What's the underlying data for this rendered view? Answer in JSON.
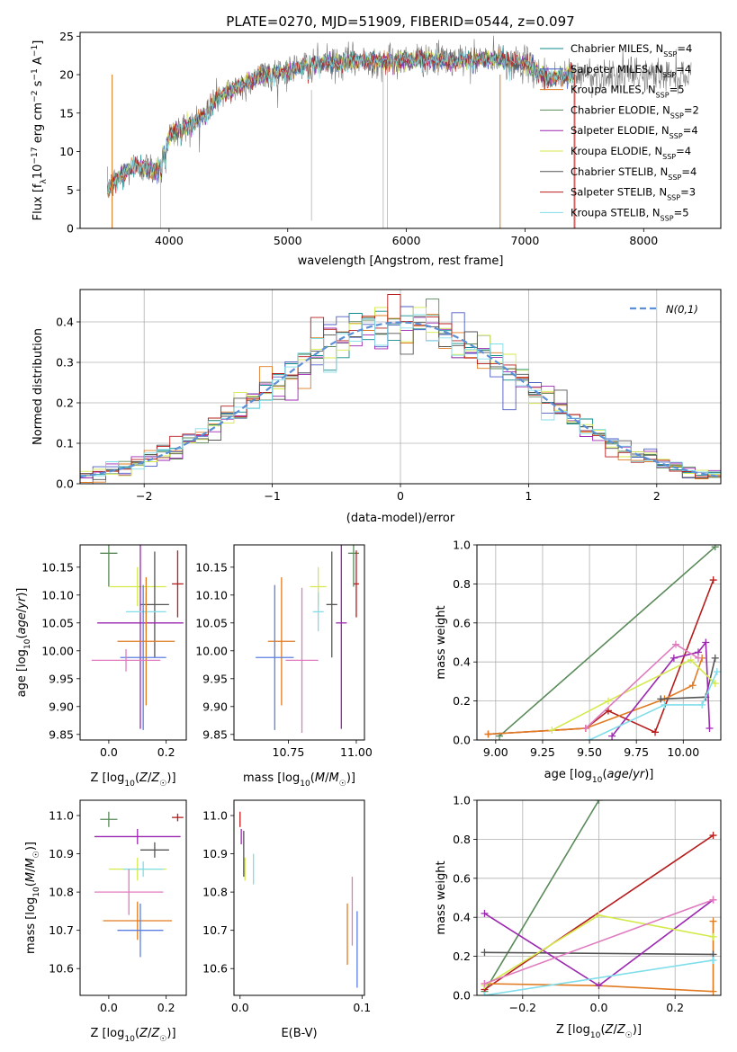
{
  "colors": {
    "chabrier_miles": "#0f8a8a",
    "salpeter_miles": "#4b5cc4",
    "kroupa_miles": "#e07b22",
    "chabrier_elodie": "#5a8a5a",
    "salpeter_elodie": "#9c27b0",
    "kroupa_elodie": "#d4e94a",
    "chabrier_stelib": "#555555",
    "salpeter_stelib": "#b71c1c",
    "kroupa_stelib": "#80deea",
    "gaussian": "#5b8fd6",
    "extra_pink": "#e07bbf",
    "extra_blue": "#5b7fe0"
  },
  "chart_data": [
    {
      "type": "line",
      "title": "PLATE=0270, MJD=51909, FIBERID=0544, z=0.097",
      "xlabel": "wavelength [Angstrom, rest frame]",
      "ylabel": "Flux [f_λ10^-17 erg cm^-2 s^-1 A^-1]",
      "xlim": [
        3250,
        8650
      ],
      "ylim": [
        0,
        25.5
      ],
      "xticks": [
        4000,
        5000,
        6000,
        7000,
        8000
      ],
      "yticks": [
        0,
        5,
        10,
        15,
        20,
        25
      ],
      "legend": "right",
      "continuum": {
        "x": [
          3480,
          3600,
          3700,
          3800,
          3900,
          4000,
          4100,
          4200,
          4300,
          4400,
          4600,
          4800,
          5000,
          5200,
          5400,
          5600,
          5800,
          6000,
          6200,
          6400,
          6600,
          6800,
          7000,
          7200,
          7400
        ],
        "y": [
          5,
          7,
          8,
          8,
          7.5,
          12,
          13,
          13.5,
          15,
          17,
          18.5,
          20,
          20.5,
          21.5,
          21.5,
          21.8,
          21.8,
          22,
          22,
          21.8,
          22,
          22,
          21.5,
          19.5,
          20
        ]
      },
      "legend_entries": [
        {
          "label": "Chabrier MILES, N",
          "sub": "SSP",
          "suffix": "=4",
          "color": "#0f8a8a"
        },
        {
          "label": "Salpeter MILES, N",
          "sub": "SSP",
          "suffix": "=4",
          "color": "#4b5cc4"
        },
        {
          "label": "Kroupa MILES, N",
          "sub": "SSP",
          "suffix": "=5",
          "color": "#e07b22"
        },
        {
          "label": "Chabrier ELODIE, N",
          "sub": "SSP",
          "suffix": "=2",
          "color": "#5a8a5a"
        },
        {
          "label": "Salpeter ELODIE, N",
          "sub": "SSP",
          "suffix": "=4",
          "color": "#9c27b0"
        },
        {
          "label": "Kroupa ELODIE, N",
          "sub": "SSP",
          "suffix": "=4",
          "color": "#d4e94a"
        },
        {
          "label": "Chabrier STELIB, N",
          "sub": "SSP",
          "suffix": "=4",
          "color": "#555555"
        },
        {
          "label": "Salpeter STELIB, N",
          "sub": "SSP",
          "suffix": "=3",
          "color": "#b71c1c"
        },
        {
          "label": "Kroupa STELIB, N",
          "sub": "SSP",
          "suffix": "=5",
          "color": "#80deea"
        }
      ]
    },
    {
      "type": "histogram",
      "xlabel": "(data-model)/error",
      "ylabel": "Normed distribution",
      "xlim": [
        -2.5,
        2.5
      ],
      "ylim": [
        0,
        0.48
      ],
      "xticks": [
        -2,
        -1,
        0,
        1,
        2
      ],
      "yticks": [
        0.0,
        0.1,
        0.2,
        0.3,
        0.4
      ],
      "grid": true,
      "legend": "top-right",
      "gaussian_label": "N(0,1)",
      "bin_width": 0.1
    },
    {
      "type": "errorbar",
      "xlabel": "Z [log10(Z/Z☉)]",
      "ylabel": "age  [log10(age/yr)]",
      "xlim": [
        -0.1,
        0.27
      ],
      "ylim": [
        9.84,
        10.19
      ],
      "xticks": [
        0.0,
        0.2
      ],
      "yticks": [
        9.85,
        9.9,
        9.95,
        10.0,
        10.05,
        10.1,
        10.15
      ],
      "points": [
        {
          "color": "#5a8a5a",
          "x": 0.0,
          "xerr": 0.03,
          "y": 10.175,
          "yerr": 0.06
        },
        {
          "color": "#d4e94a",
          "x": 0.1,
          "xerr": 0.1,
          "y": 10.115,
          "yerr": 0.035
        },
        {
          "color": "#b71c1c",
          "x": 0.24,
          "xerr": 0.02,
          "y": 10.12,
          "yerr": 0.06
        },
        {
          "color": "#555555",
          "x": 0.16,
          "xerr": 0.05,
          "y": 10.083,
          "yerr": 0.095
        },
        {
          "color": "#9c27b0",
          "x": 0.11,
          "xerr": 0.15,
          "y": 10.05,
          "yerr": 0.19
        },
        {
          "color": "#80deea",
          "x": 0.13,
          "xerr": 0.07,
          "y": 10.07,
          "yerr": 0.035
        },
        {
          "color": "#e07b22",
          "x": 0.13,
          "xerr": 0.1,
          "y": 10.017,
          "yerr": 0.115
        },
        {
          "color": "#5b7fe0",
          "x": 0.12,
          "xerr": 0.08,
          "y": 9.988,
          "yerr": 0.13
        },
        {
          "color": "#e07bbf",
          "x": 0.06,
          "xerr": 0.12,
          "y": 9.983,
          "yerr": 0.02
        }
      ]
    },
    {
      "type": "errorbar",
      "xlabel": "mass [log10(M/M☉)]",
      "ylabel": "",
      "xlim": [
        10.55,
        11.03
      ],
      "ylim": [
        9.84,
        10.19
      ],
      "xticks": [
        10.75,
        11.0
      ],
      "yticks": [
        9.85,
        9.9,
        9.95,
        10.0,
        10.05,
        10.1,
        10.15
      ],
      "points": [
        {
          "color": "#5a8a5a",
          "x": 10.99,
          "xerr": 0.02,
          "y": 10.175,
          "yerr": 0.06
        },
        {
          "color": "#d4e94a",
          "x": 10.86,
          "xerr": 0.03,
          "y": 10.115,
          "yerr": 0.035
        },
        {
          "color": "#b71c1c",
          "x": 11.0,
          "xerr": 0.01,
          "y": 10.12,
          "yerr": 0.06
        },
        {
          "color": "#555555",
          "x": 10.91,
          "xerr": 0.02,
          "y": 10.083,
          "yerr": 0.095
        },
        {
          "color": "#9c27b0",
          "x": 10.945,
          "xerr": 0.02,
          "y": 10.05,
          "yerr": 0.19
        },
        {
          "color": "#80deea",
          "x": 10.86,
          "xerr": 0.02,
          "y": 10.07,
          "yerr": 0.035
        },
        {
          "color": "#e07b22",
          "x": 10.725,
          "xerr": 0.05,
          "y": 10.017,
          "yerr": 0.115
        },
        {
          "color": "#5b7fe0",
          "x": 10.7,
          "xerr": 0.07,
          "y": 9.988,
          "yerr": 0.13
        },
        {
          "color": "#e07bbf",
          "x": 10.8,
          "xerr": 0.06,
          "y": 9.983,
          "yerr": 0.13
        }
      ]
    },
    {
      "type": "line",
      "xlabel": "age  [log10(age/yr)]",
      "ylabel": "mass weight",
      "xlim": [
        8.9,
        10.2
      ],
      "ylim": [
        0,
        1
      ],
      "xticks": [
        9.0,
        9.25,
        9.5,
        9.75,
        10.0
      ],
      "xticklabels": [
        "9.00",
        "9.25",
        "9.50",
        "9.75",
        "10.00"
      ],
      "yticks": [
        0.0,
        0.2,
        0.4,
        0.6,
        0.8,
        1.0
      ],
      "grid": true,
      "series": [
        {
          "color": "#5a8a5a",
          "x": [
            9.02,
            10.17
          ],
          "y": [
            0.02,
            0.99
          ]
        },
        {
          "color": "#b71c1c",
          "x": [
            8.96,
            9.48,
            9.6,
            9.85,
            10.16
          ],
          "y": [
            0.03,
            0.06,
            0.15,
            0.04,
            0.82
          ]
        },
        {
          "color": "#e07b22",
          "x": [
            8.96,
            9.48,
            9.9,
            10.05,
            10.1
          ],
          "y": [
            0.03,
            0.06,
            0.21,
            0.28,
            0.42
          ]
        },
        {
          "color": "#555555",
          "x": [
            9.88,
            10.12,
            10.17
          ],
          "y": [
            0.21,
            0.22,
            0.42
          ]
        },
        {
          "color": "#9c27b0",
          "x": [
            9.62,
            9.95,
            10.08,
            10.12,
            10.14
          ],
          "y": [
            0.02,
            0.42,
            0.45,
            0.5,
            0.06
          ]
        },
        {
          "color": "#d4e94a",
          "x": [
            9.3,
            9.6,
            10.04,
            10.17
          ],
          "y": [
            0.05,
            0.2,
            0.41,
            0.29
          ]
        },
        {
          "color": "#80deea",
          "x": [
            9.5,
            9.9,
            10.1,
            10.18
          ],
          "y": [
            0.0,
            0.18,
            0.18,
            0.35
          ]
        },
        {
          "color": "#e07bbf",
          "x": [
            9.48,
            9.96,
            10.08
          ],
          "y": [
            0.06,
            0.49,
            0.42
          ]
        }
      ]
    },
    {
      "type": "errorbar",
      "xlabel": "Z [log10(Z/Z☉)]",
      "ylabel": "mass [log10(M/M☉)]",
      "xlim": [
        -0.1,
        0.27
      ],
      "ylim": [
        10.53,
        11.04
      ],
      "xticks": [
        0.0,
        0.2
      ],
      "yticks": [
        10.6,
        10.7,
        10.8,
        10.9,
        11.0
      ],
      "points": [
        {
          "color": "#5a8a5a",
          "x": 0.0,
          "xerr": 0.03,
          "y": 10.99,
          "yerr": 0.02
        },
        {
          "color": "#b71c1c",
          "x": 0.24,
          "xerr": 0.02,
          "y": 10.995,
          "yerr": 0.01
        },
        {
          "color": "#9c27b0",
          "x": 0.1,
          "xerr": 0.15,
          "y": 10.945,
          "yerr": 0.02
        },
        {
          "color": "#555555",
          "x": 0.16,
          "xerr": 0.05,
          "y": 10.91,
          "yerr": 0.02
        },
        {
          "color": "#d4e94a",
          "x": 0.1,
          "xerr": 0.1,
          "y": 10.86,
          "yerr": 0.03
        },
        {
          "color": "#80deea",
          "x": 0.12,
          "xerr": 0.07,
          "y": 10.86,
          "yerr": 0.02
        },
        {
          "color": "#e07bbf",
          "x": 0.07,
          "xerr": 0.12,
          "y": 10.8,
          "yerr": 0.06
        },
        {
          "color": "#e07b22",
          "x": 0.1,
          "xerr": 0.12,
          "y": 10.725,
          "yerr": 0.05
        },
        {
          "color": "#5b7fe0",
          "x": 0.11,
          "xerr": 0.08,
          "y": 10.7,
          "yerr": 0.07
        }
      ]
    },
    {
      "type": "errorbar",
      "xlabel": "E(B-V)",
      "ylabel": "",
      "xlim": [
        -0.005,
        0.102
      ],
      "ylim": [
        10.53,
        11.04
      ],
      "xticks": [
        0.0,
        0.1
      ],
      "yticks": [
        10.6,
        10.7,
        10.8,
        10.9,
        11.0
      ],
      "points": [
        {
          "color": "#b71c1c",
          "x": 0.0,
          "xerr": 0.0,
          "y": 10.99,
          "yerr": 0.02
        },
        {
          "color": "#9c27b0",
          "x": 0.001,
          "xerr": 0.0,
          "y": 10.945,
          "yerr": 0.02
        },
        {
          "color": "#555555",
          "x": 0.003,
          "xerr": 0.0,
          "y": 10.9,
          "yerr": 0.06
        },
        {
          "color": "#d4e94a",
          "x": 0.004,
          "xerr": 0.0,
          "y": 10.86,
          "yerr": 0.03
        },
        {
          "color": "#80deea",
          "x": 0.011,
          "xerr": 0.0,
          "y": 10.86,
          "yerr": 0.04
        },
        {
          "color": "#e07bbf",
          "x": 0.092,
          "xerr": 0.0,
          "y": 10.75,
          "yerr": 0.09
        },
        {
          "color": "#e07b22",
          "x": 0.088,
          "xerr": 0.0,
          "y": 10.69,
          "yerr": 0.08
        },
        {
          "color": "#5b7fe0",
          "x": 0.096,
          "xerr": 0.0,
          "y": 10.65,
          "yerr": 0.1
        }
      ]
    },
    {
      "type": "line",
      "xlabel": "Z [log10(Z/Z☉)]",
      "ylabel": "mass weight",
      "xlim": [
        -0.32,
        0.32
      ],
      "ylim": [
        0,
        1
      ],
      "xticks": [
        -0.2,
        0.0,
        0.2
      ],
      "yticks": [
        0.0,
        0.2,
        0.4,
        0.6,
        0.8,
        1.0
      ],
      "grid": true,
      "series": [
        {
          "color": "#5a8a5a",
          "x": [
            -0.3,
            0.0
          ],
          "y": [
            0.02,
            1.0
          ]
        },
        {
          "color": "#b71c1c",
          "x": [
            -0.3,
            0.3
          ],
          "y": [
            0.03,
            0.82
          ]
        },
        {
          "color": "#e07b22",
          "x": [
            -0.3,
            0.0,
            0.3,
            0.3
          ],
          "y": [
            0.06,
            0.05,
            0.02,
            0.38
          ]
        },
        {
          "color": "#555555",
          "x": [
            -0.3,
            0.3
          ],
          "y": [
            0.22,
            0.21
          ]
        },
        {
          "color": "#9c27b0",
          "x": [
            -0.3,
            0.0,
            0.3
          ],
          "y": [
            0.42,
            0.05,
            0.49
          ]
        },
        {
          "color": "#d4e94a",
          "x": [
            -0.3,
            0.0,
            0.3
          ],
          "y": [
            0.05,
            0.41,
            0.3
          ]
        },
        {
          "color": "#80deea",
          "x": [
            -0.3,
            0.3
          ],
          "y": [
            0.0,
            0.18
          ]
        },
        {
          "color": "#e07bbf",
          "x": [
            -0.3,
            0.3
          ],
          "y": [
            0.06,
            0.49
          ]
        }
      ]
    }
  ]
}
